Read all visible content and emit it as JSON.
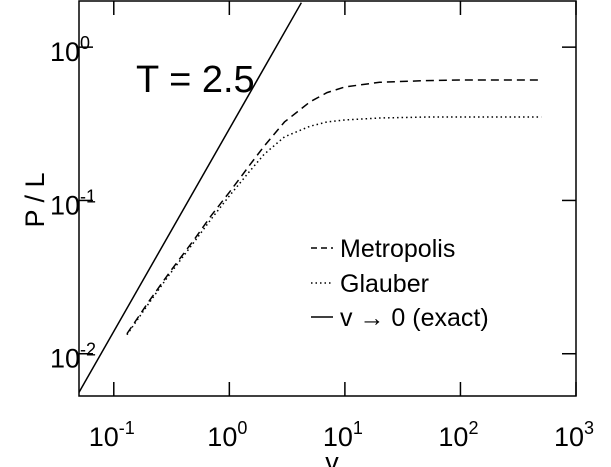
{
  "chart_data": {
    "type": "line",
    "title": "",
    "xlabel": "v",
    "ylabel": "P / L",
    "annotation": "T = 2.5",
    "x_scale": "log",
    "y_scale": "log",
    "xlim": [
      0.05,
      1000
    ],
    "ylim": [
      0.0053,
      2.0
    ],
    "grid": false,
    "legend_position": "lower-right",
    "x_ticks": [
      {
        "value": 0.1,
        "base": "10",
        "exp": "-1"
      },
      {
        "value": 1,
        "base": "10",
        "exp": "0"
      },
      {
        "value": 10,
        "base": "10",
        "exp": "1"
      },
      {
        "value": 100,
        "base": "10",
        "exp": "2"
      },
      {
        "value": 1000,
        "base": "10",
        "exp": "3"
      }
    ],
    "y_ticks": [
      {
        "value": 0.01,
        "base": "10",
        "exp": "-2"
      },
      {
        "value": 0.1,
        "base": "10",
        "exp": "-1"
      },
      {
        "value": 1,
        "base": "10",
        "exp": "0"
      }
    ],
    "series": [
      {
        "name": "Metropolis",
        "style": "dashed",
        "x": [
          0.13,
          0.2,
          0.3,
          0.5,
          0.7,
          1.0,
          1.5,
          2.0,
          3.0,
          5.0,
          7.0,
          10,
          20,
          50,
          100,
          200,
          500
        ],
        "y": [
          0.0135,
          0.0218,
          0.0335,
          0.056,
          0.08,
          0.113,
          0.17,
          0.226,
          0.325,
          0.44,
          0.505,
          0.55,
          0.59,
          0.605,
          0.61,
          0.61,
          0.61
        ]
      },
      {
        "name": "Glauber",
        "style": "dotted",
        "x": [
          0.13,
          0.2,
          0.3,
          0.5,
          0.7,
          1.0,
          1.5,
          2.0,
          3.0,
          5.0,
          7.0,
          10,
          20,
          50,
          100,
          200,
          500
        ],
        "y": [
          0.0133,
          0.0212,
          0.0325,
          0.054,
          0.076,
          0.107,
          0.155,
          0.2,
          0.26,
          0.305,
          0.325,
          0.335,
          0.345,
          0.35,
          0.35,
          0.35,
          0.35
        ]
      },
      {
        "name": "v → 0 (exact)",
        "style": "solid",
        "x": [
          0.05,
          4.2
        ],
        "y": [
          0.0056,
          1.95
        ]
      }
    ]
  }
}
